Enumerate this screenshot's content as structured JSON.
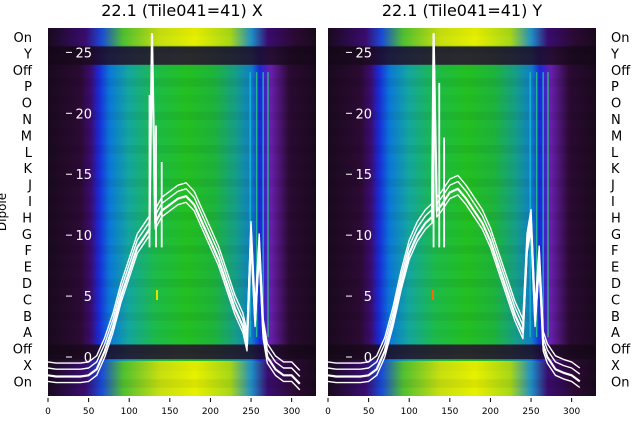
{
  "chart_data": [
    {
      "type": "heatmap",
      "title": "22.1 (Tile041=41) X",
      "xlim": [
        0,
        330
      ],
      "xticks": [
        0,
        50,
        100,
        150,
        200,
        250,
        300
      ],
      "ylim": [
        -3.2,
        27
      ],
      "yticks": [
        0,
        5,
        10,
        15,
        20,
        25
      ],
      "ylabel": "Dipole",
      "rows_left": [
        "On",
        "Y",
        "Off",
        "P",
        "O",
        "N",
        "M",
        "L",
        "K",
        "J",
        "I",
        "H",
        "G",
        "F",
        "E",
        "D",
        "C",
        "B",
        "A",
        "Off",
        "X",
        "On"
      ],
      "overlay_line": {
        "x": [
          0,
          10,
          20,
          30,
          40,
          50,
          60,
          70,
          80,
          90,
          100,
          110,
          120,
          125,
          128,
          132,
          136,
          140,
          150,
          160,
          170,
          180,
          190,
          200,
          210,
          220,
          230,
          240,
          245,
          250,
          255,
          260,
          265,
          270,
          280,
          290,
          300,
          310
        ],
        "y": [
          -1.5,
          -1.6,
          -1.6,
          -1.6,
          -1.6,
          -1.5,
          -1.0,
          0.5,
          2.5,
          5.0,
          7.0,
          9.0,
          10.0,
          10.5,
          26.5,
          11.0,
          11.5,
          12.0,
          12.5,
          13.0,
          13.2,
          12.5,
          11.0,
          9.5,
          8.0,
          6.0,
          4.0,
          2.5,
          1.0,
          10.0,
          3.0,
          9.0,
          2.0,
          0.0,
          -1.0,
          -1.5,
          -1.5,
          -2.2
        ]
      },
      "spike_x": [
        125,
        133,
        140
      ],
      "spike_top": [
        21.5,
        19.0,
        16.0
      ]
    },
    {
      "type": "heatmap",
      "title": "22.1 (Tile041=41) Y",
      "xlim": [
        0,
        330
      ],
      "xticks": [
        0,
        50,
        100,
        150,
        200,
        250,
        300
      ],
      "ylim": [
        -3.2,
        27
      ],
      "yticks": [
        0,
        5,
        10,
        15,
        20,
        25
      ],
      "rows_right": [
        "On",
        "Y",
        "Off",
        "P",
        "O",
        "N",
        "M",
        "L",
        "K",
        "J",
        "I",
        "H",
        "G",
        "F",
        "E",
        "D",
        "C",
        "B",
        "A",
        "Off",
        "X",
        "On"
      ],
      "overlay_line": {
        "x": [
          0,
          10,
          20,
          30,
          40,
          50,
          60,
          70,
          80,
          90,
          100,
          110,
          120,
          128,
          130,
          134,
          140,
          150,
          160,
          170,
          180,
          190,
          200,
          210,
          220,
          230,
          240,
          245,
          250,
          255,
          260,
          265,
          270,
          280,
          290,
          300,
          310
        ],
        "y": [
          -1.5,
          -1.6,
          -1.6,
          -1.6,
          -1.6,
          -1.5,
          -1.0,
          0.5,
          3.0,
          6.0,
          8.5,
          10.0,
          11.0,
          11.5,
          26.5,
          12.0,
          12.5,
          13.5,
          13.8,
          13.0,
          12.0,
          11.0,
          9.5,
          7.5,
          5.5,
          3.5,
          2.0,
          9.0,
          11.0,
          3.0,
          8.0,
          1.0,
          0.0,
          -1.0,
          -1.3,
          -1.5,
          -2.0
        ]
      },
      "spike_x": [
        130,
        137,
        143
      ],
      "spike_top": [
        24.0,
        22.5,
        18.0
      ]
    }
  ]
}
